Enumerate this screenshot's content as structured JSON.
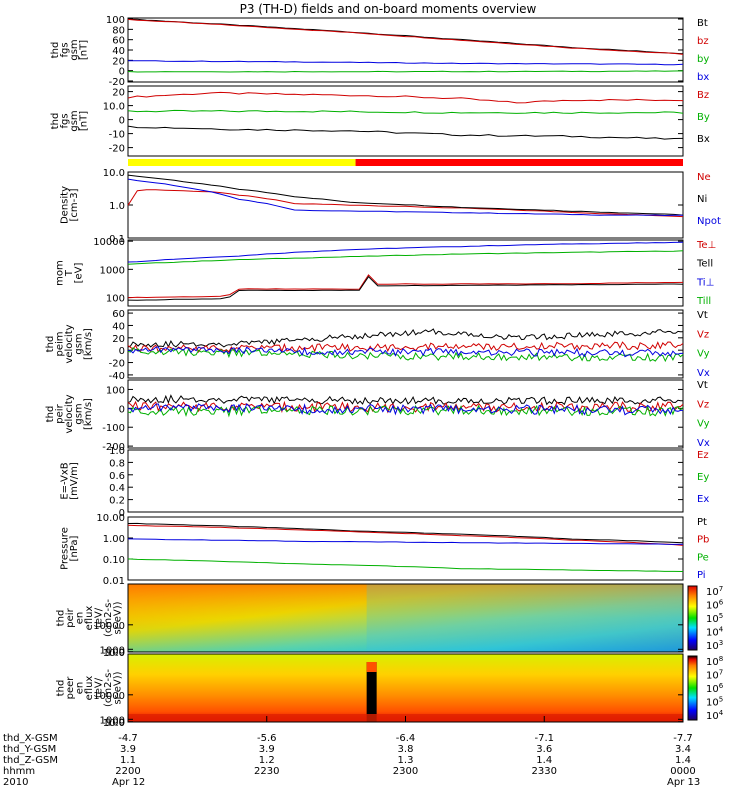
{
  "title": "P3 (TH-D) fields and on-board moments overview",
  "colors": {
    "black": "#000000",
    "red": "#d00000",
    "green": "#00b000",
    "blue": "#0000e0",
    "yellow": "#ffff00",
    "barred": "#ff0000"
  },
  "chart_data": [
    {
      "id": "fgs-mag",
      "type": "line",
      "ylabel": [
        "thd",
        "fgs",
        "gsm",
        "[nT]"
      ],
      "yticks": [
        -20,
        0,
        20,
        40,
        60,
        80,
        100
      ],
      "ylim": [
        -22,
        102
      ],
      "series": [
        {
          "name": "Bt",
          "color": "black",
          "points": [
            [
              0,
              100
            ],
            [
              0.2,
              88
            ],
            [
              0.4,
              75
            ],
            [
              0.6,
              60
            ],
            [
              0.8,
              45
            ],
            [
              1,
              33
            ]
          ]
        },
        {
          "name": "bz",
          "color": "red",
          "points": [
            [
              0,
              99
            ],
            [
              0.2,
              87
            ],
            [
              0.4,
              74
            ],
            [
              0.6,
              59
            ],
            [
              0.8,
              44
            ],
            [
              1,
              32
            ]
          ]
        },
        {
          "name": "by",
          "color": "green",
          "points": [
            [
              0,
              -2
            ],
            [
              0.5,
              -2
            ],
            [
              1,
              -1
            ]
          ]
        },
        {
          "name": "bx",
          "color": "blue",
          "points": [
            [
              0,
              19
            ],
            [
              0.3,
              17
            ],
            [
              0.6,
              14
            ],
            [
              1,
              12
            ]
          ]
        }
      ]
    },
    {
      "id": "fgs-zoom",
      "type": "line",
      "ylabel": [
        "thd",
        "fgs",
        "gsm",
        "[nT]"
      ],
      "yticks": [
        -20,
        -10,
        0,
        10,
        20
      ],
      "ylim": [
        -26,
        24
      ],
      "series": [
        {
          "name": "Bz",
          "color": "red",
          "points": [
            [
              0,
              16
            ],
            [
              0.15,
              19
            ],
            [
              0.3,
              18
            ],
            [
              0.45,
              17
            ],
            [
              0.6,
              15
            ],
            [
              0.7,
              12
            ],
            [
              0.8,
              14
            ],
            [
              0.9,
              14
            ],
            [
              1,
              14
            ]
          ]
        },
        {
          "name": "By",
          "color": "green",
          "points": [
            [
              0,
              6
            ],
            [
              0.3,
              6
            ],
            [
              0.6,
              5
            ],
            [
              1,
              5
            ]
          ]
        },
        {
          "name": "Bx",
          "color": "black",
          "points": [
            [
              0,
              -5
            ],
            [
              0.2,
              -7
            ],
            [
              0.4,
              -8
            ],
            [
              0.6,
              -11
            ],
            [
              0.8,
              -12
            ],
            [
              1,
              -14
            ]
          ]
        }
      ]
    },
    {
      "id": "density",
      "type": "line",
      "scale": "log",
      "ylabel": [
        "Density",
        "[cm-3]"
      ],
      "yticks": [
        0.1,
        1.0,
        10.0
      ],
      "ylim": [
        0.1,
        10.0
      ],
      "series": [
        {
          "name": "Ne",
          "color": "red",
          "points": [
            [
              0,
              1.0
            ],
            [
              0.02,
              3.0
            ],
            [
              0.15,
              2.5
            ],
            [
              0.2,
              2.0
            ],
            [
              0.3,
              1.1
            ],
            [
              0.5,
              0.9
            ],
            [
              0.7,
              0.7
            ],
            [
              0.85,
              0.55
            ],
            [
              1,
              0.45
            ]
          ]
        },
        {
          "name": "Ni",
          "color": "black",
          "points": [
            [
              0,
              8.0
            ],
            [
              0.1,
              5.0
            ],
            [
              0.2,
              3.0
            ],
            [
              0.3,
              1.8
            ],
            [
              0.4,
              1.2
            ],
            [
              0.6,
              0.85
            ],
            [
              0.8,
              0.65
            ],
            [
              1,
              0.5
            ]
          ]
        },
        {
          "name": "Npot",
          "color": "blue",
          "points": [
            [
              0,
              6.0
            ],
            [
              0.1,
              3.5
            ],
            [
              0.2,
              1.5
            ],
            [
              0.3,
              0.7
            ],
            [
              0.5,
              0.62
            ],
            [
              0.7,
              0.55
            ],
            [
              0.85,
              0.5
            ],
            [
              1,
              0.48
            ]
          ]
        }
      ]
    },
    {
      "id": "temperature",
      "type": "line",
      "scale": "log",
      "ylabel": [
        "mom",
        "T",
        "[eV]"
      ],
      "yticks": [
        100,
        1000,
        10000
      ],
      "ylim": [
        50,
        11000
      ],
      "series": [
        {
          "name": "Te⊥",
          "color": "red",
          "points": [
            [
              0,
              100
            ],
            [
              0.18,
              110
            ],
            [
              0.2,
              200
            ],
            [
              0.42,
              200
            ],
            [
              0.43,
              800
            ],
            [
              0.44,
              300
            ],
            [
              0.6,
              300
            ],
            [
              0.8,
              310
            ],
            [
              1,
              350
            ]
          ]
        },
        {
          "name": "Tell",
          "color": "black",
          "points": [
            [
              0,
              80
            ],
            [
              0.18,
              90
            ],
            [
              0.2,
              180
            ],
            [
              0.42,
              180
            ],
            [
              0.43,
              700
            ],
            [
              0.44,
              260
            ],
            [
              0.7,
              280
            ],
            [
              1,
              300
            ]
          ]
        },
        {
          "name": "Ti⊥",
          "color": "blue",
          "points": [
            [
              0,
              1800
            ],
            [
              0.2,
              3000
            ],
            [
              0.4,
              5000
            ],
            [
              0.6,
              6500
            ],
            [
              0.8,
              8000
            ],
            [
              1,
              9000
            ]
          ]
        },
        {
          "name": "Till",
          "color": "green",
          "points": [
            [
              0,
              1500
            ],
            [
              0.2,
              2200
            ],
            [
              0.4,
              2800
            ],
            [
              0.6,
              3500
            ],
            [
              0.8,
              4000
            ],
            [
              1,
              4500
            ]
          ]
        }
      ]
    },
    {
      "id": "peim-velocity",
      "type": "line",
      "ylabel": [
        "thd",
        "peim",
        "velocity",
        "gsm",
        "[km/s]"
      ],
      "yticks": [
        -40,
        -20,
        0,
        20,
        40,
        60
      ],
      "ylim": [
        -45,
        65
      ],
      "series": [
        {
          "name": "Vt",
          "color": "black",
          "points": [
            [
              0,
              10
            ],
            [
              0.2,
              10
            ],
            [
              0.45,
              25
            ],
            [
              0.55,
              30
            ],
            [
              0.7,
              20
            ],
            [
              1,
              30
            ]
          ]
        },
        {
          "name": "Vz",
          "color": "red",
          "points": [
            [
              0,
              2
            ],
            [
              0.5,
              5
            ],
            [
              1,
              8
            ]
          ]
        },
        {
          "name": "Vy",
          "color": "green",
          "points": [
            [
              0,
              -2
            ],
            [
              0.5,
              -10
            ],
            [
              1,
              -12
            ]
          ]
        },
        {
          "name": "Vx",
          "color": "blue",
          "points": [
            [
              0,
              0
            ],
            [
              0.5,
              -3
            ],
            [
              1,
              -5
            ]
          ]
        }
      ]
    },
    {
      "id": "peir-velocity",
      "type": "line",
      "ylabel": [
        "thd",
        "peir",
        "velocity",
        "gsm",
        "[km/s]"
      ],
      "yticks": [
        -200,
        -100,
        0,
        100
      ],
      "ylim": [
        -210,
        150
      ],
      "series": [
        {
          "name": "Vt",
          "color": "black",
          "points": [
            [
              0,
              50
            ],
            [
              0.5,
              40
            ],
            [
              1,
              40
            ]
          ]
        },
        {
          "name": "Vz",
          "color": "red",
          "points": [
            [
              0,
              10
            ],
            [
              0.5,
              5
            ],
            [
              1,
              10
            ]
          ]
        },
        {
          "name": "Vy",
          "color": "green",
          "points": [
            [
              0,
              -20
            ],
            [
              0.5,
              -10
            ],
            [
              1,
              -15
            ]
          ]
        },
        {
          "name": "Vx",
          "color": "blue",
          "points": [
            [
              0,
              0
            ],
            [
              0.5,
              -5
            ],
            [
              1,
              -10
            ]
          ]
        }
      ]
    },
    {
      "id": "e-field",
      "type": "line",
      "ylabel": [
        "E=-VxB",
        "[mV/m]"
      ],
      "yticks": [
        0.0,
        0.2,
        0.4,
        0.6,
        0.8,
        1.0
      ],
      "ylim": [
        0.0,
        1.0
      ],
      "series": [
        {
          "name": "Ez",
          "color": "red",
          "points": []
        },
        {
          "name": "Ey",
          "color": "green",
          "points": []
        },
        {
          "name": "Ex",
          "color": "blue",
          "points": []
        }
      ]
    },
    {
      "id": "pressure",
      "type": "line",
      "scale": "log",
      "ylabel": [
        "Pressure",
        "[nPa]"
      ],
      "yticks": [
        0.01,
        0.1,
        1.0,
        10.0
      ],
      "ylabels": [
        "0.01",
        "0.10",
        "1.00",
        "10.00"
      ],
      "ylim": [
        0.01,
        10.0
      ],
      "series": [
        {
          "name": "Pt",
          "color": "black",
          "points": [
            [
              0,
              5.0
            ],
            [
              0.2,
              3.5
            ],
            [
              0.4,
              2.2
            ],
            [
              0.6,
              1.5
            ],
            [
              0.8,
              0.9
            ],
            [
              1,
              0.6
            ]
          ]
        },
        {
          "name": "Pb",
          "color": "red",
          "points": [
            [
              0,
              4.0
            ],
            [
              0.2,
              3.0
            ],
            [
              0.4,
              2.0
            ],
            [
              0.6,
              1.3
            ],
            [
              0.8,
              0.8
            ],
            [
              1,
              0.45
            ]
          ]
        },
        {
          "name": "Pe",
          "color": "green",
          "points": [
            [
              0,
              0.1
            ],
            [
              0.3,
              0.06
            ],
            [
              0.6,
              0.035
            ],
            [
              0.8,
              0.03
            ],
            [
              1,
              0.025
            ]
          ]
        },
        {
          "name": "Pi",
          "color": "blue",
          "points": [
            [
              0,
              0.9
            ],
            [
              0.3,
              0.7
            ],
            [
              0.6,
              0.6
            ],
            [
              0.8,
              0.55
            ],
            [
              1,
              0.5
            ]
          ]
        }
      ]
    },
    {
      "id": "peir-spectrogram",
      "type": "heatmap",
      "ylabel": [
        "thd",
        "peir",
        "en",
        "eflux",
        "(eV/",
        "(cm2-s-",
        "sr-eV))"
      ],
      "yticks": [
        10,
        100,
        1000,
        10000
      ],
      "ylim": [
        5,
        25000
      ],
      "colorbar": {
        "ticks": [
          3,
          4,
          5,
          6,
          7
        ]
      }
    },
    {
      "id": "peer-spectrogram",
      "type": "heatmap",
      "ylabel": [
        "thd",
        "peer",
        "en",
        "eflux",
        "(eV/",
        "(cm2-s-",
        "sr-eV))"
      ],
      "yticks": [
        10,
        100,
        1000,
        10000
      ],
      "ylim": [
        6,
        25000
      ],
      "colorbar": {
        "ticks": [
          4,
          5,
          6,
          7,
          8
        ]
      }
    }
  ],
  "bar": {
    "segments": [
      {
        "from": 0,
        "to": 0.41,
        "color": "yellow"
      },
      {
        "from": 0.41,
        "to": 1,
        "color": "barred"
      }
    ]
  },
  "xaxis": {
    "row_labels": [
      "thd_X-GSM",
      "thd_Y-GSM",
      "thd_Z-GSM",
      "hhmm",
      "2010"
    ],
    "ticks": [
      {
        "pos": 0.0,
        "rows": [
          "-4.7",
          "3.9",
          "1.1",
          "2200",
          "Apr 12"
        ]
      },
      {
        "pos": 0.25,
        "rows": [
          "-5.6",
          "3.9",
          "1.2",
          "2230",
          ""
        ]
      },
      {
        "pos": 0.5,
        "rows": [
          "-6.4",
          "3.8",
          "1.3",
          "2300",
          ""
        ]
      },
      {
        "pos": 0.75,
        "rows": [
          "-7.1",
          "3.6",
          "1.4",
          "2330",
          ""
        ]
      },
      {
        "pos": 1.0,
        "rows": [
          "-7.7",
          "3.4",
          "1.4",
          "0000",
          "Apr 13"
        ]
      }
    ]
  }
}
